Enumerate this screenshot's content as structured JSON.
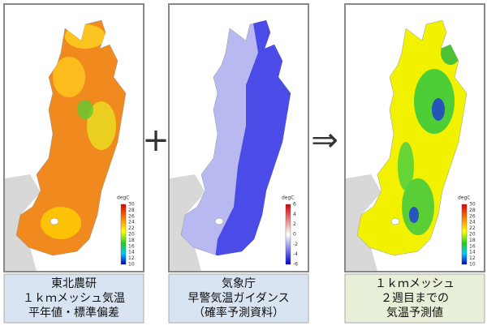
{
  "panels": [
    {
      "caption": [
        "東北農研",
        "１ｋｍメッシュ気温",
        "平年値・標準偏差"
      ],
      "colorbar": {
        "unit": "degC",
        "ticks": [
          30,
          28,
          26,
          24,
          22,
          20,
          18,
          16,
          14,
          12,
          10
        ]
      }
    },
    {
      "caption": [
        "気象庁",
        "早警気温ガイダンス",
        "（確率予測資料）"
      ],
      "colorbar": {
        "unit": "degC",
        "ticks": [
          6,
          4,
          2,
          0,
          -2,
          -4,
          -6
        ]
      }
    },
    {
      "caption": [
        "１ｋｍメッシュ",
        "２週目までの",
        "気温予測値"
      ],
      "colorbar": {
        "unit": "degC",
        "ticks": [
          30,
          28,
          26,
          24,
          22,
          20,
          18,
          16,
          14,
          12,
          10
        ]
      }
    }
  ],
  "operators": [
    "+",
    "⇒"
  ]
}
